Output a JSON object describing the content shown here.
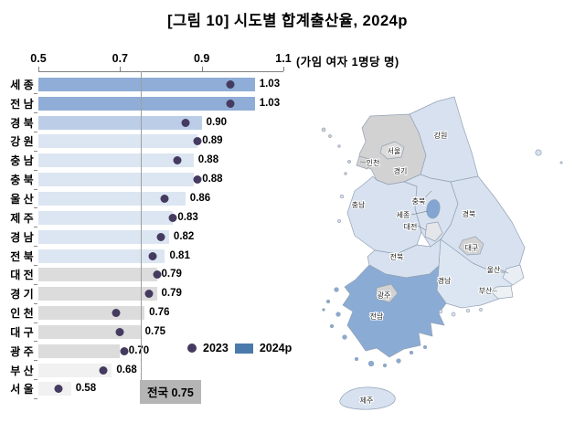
{
  "title": "[그림 10] 시도별 합계출산율, 2024p",
  "unit_label": "(가임 여자 1명당 명)",
  "legend": {
    "dot_label": "2023",
    "bar_label": "2024p",
    "dot_color": "#453a5f",
    "bar_color": "#4a7aab"
  },
  "national_box": {
    "label": "전국",
    "value": "0.75",
    "bg": "#b5b5b5"
  },
  "chart_data": {
    "type": "bar",
    "orientation": "horizontal",
    "title": "시도별 합계출산율, 2024p",
    "xlabel": "합계출산율 (가임 여자 1명당 명)",
    "xlim": [
      0.5,
      1.1
    ],
    "x_ticks": [
      "0.5",
      "0.7",
      "0.9",
      "1.1"
    ],
    "reference_line": {
      "label": "전국",
      "value": 0.75
    },
    "categories": [
      "세 종",
      "전 남",
      "경 북",
      "강 원",
      "충 남",
      "충 북",
      "울 산",
      "제 주",
      "경 남",
      "전 북",
      "대 전",
      "경 기",
      "인 천",
      "대 구",
      "광 주",
      "부 산",
      "서 울"
    ],
    "series": [
      {
        "name": "2024p",
        "marker": "bar",
        "values": [
          1.03,
          1.03,
          0.9,
          0.89,
          0.88,
          0.88,
          0.86,
          0.83,
          0.82,
          0.81,
          0.79,
          0.79,
          0.76,
          0.75,
          0.7,
          0.68,
          0.58
        ]
      },
      {
        "name": "2023",
        "marker": "dot",
        "values": [
          0.97,
          0.97,
          0.86,
          0.89,
          0.84,
          0.89,
          0.81,
          0.83,
          0.8,
          0.78,
          0.79,
          0.77,
          0.69,
          0.7,
          0.71,
          0.66,
          0.55
        ]
      }
    ],
    "value_labels": [
      "1.03",
      "1.03",
      "0.90",
      "0.89",
      "0.88",
      "0.88",
      "0.86",
      "0.83",
      "0.82",
      "0.81",
      "0.79",
      "0.79",
      "0.76",
      "0.75",
      "0.70",
      "0.68",
      "0.58"
    ],
    "bar_colors": [
      "#8fadd6",
      "#8fadd6",
      "#bccde7",
      "#dce6f2",
      "#dce6f2",
      "#dce6f2",
      "#dce6f2",
      "#dce6f2",
      "#dce6f2",
      "#dce6f2",
      "#dcdcdc",
      "#dcdcdc",
      "#dcdcdc",
      "#dcdcdc",
      "#dcdcdc",
      "#f1f1f1",
      "#f1f1f1"
    ],
    "legend_position": "inside-bottom-right"
  },
  "map": {
    "regions": [
      {
        "id": "gyeonggi",
        "label": "경기",
        "fill": "#d2d2d2"
      },
      {
        "id": "seoul",
        "label": "서울",
        "fill": "#dbdbdb"
      },
      {
        "id": "incheon",
        "label": "인천",
        "fill": "#d2d2d2"
      },
      {
        "id": "gangwon",
        "label": "강원",
        "fill": "#d7e1ef"
      },
      {
        "id": "chungbuk",
        "label": "충북",
        "fill": "#d7e1ef"
      },
      {
        "id": "chungnam",
        "label": "충남",
        "fill": "#d7e1ef"
      },
      {
        "id": "sejong",
        "label": "세종",
        "fill": "#83a5d2"
      },
      {
        "id": "daejeon",
        "label": "대전",
        "fill": "#e4e6ea"
      },
      {
        "id": "gyeongbuk",
        "label": "경북",
        "fill": "#d7e1ef"
      },
      {
        "id": "daegu",
        "label": "대구",
        "fill": "#d2d2d2"
      },
      {
        "id": "ulsan",
        "label": "울산",
        "fill": "#e9eef5"
      },
      {
        "id": "busan",
        "label": "부산",
        "fill": "#eef1f4"
      },
      {
        "id": "gyeongnam",
        "label": "경남",
        "fill": "#dce6f2"
      },
      {
        "id": "jeonbuk",
        "label": "전북",
        "fill": "#d7e1ef"
      },
      {
        "id": "gwangju",
        "label": "광주",
        "fill": "#d2d2d2"
      },
      {
        "id": "jeonnam",
        "label": "전남",
        "fill": "#8aabd4"
      },
      {
        "id": "jeju",
        "label": "제주",
        "fill": "#d7e1ef"
      }
    ]
  }
}
